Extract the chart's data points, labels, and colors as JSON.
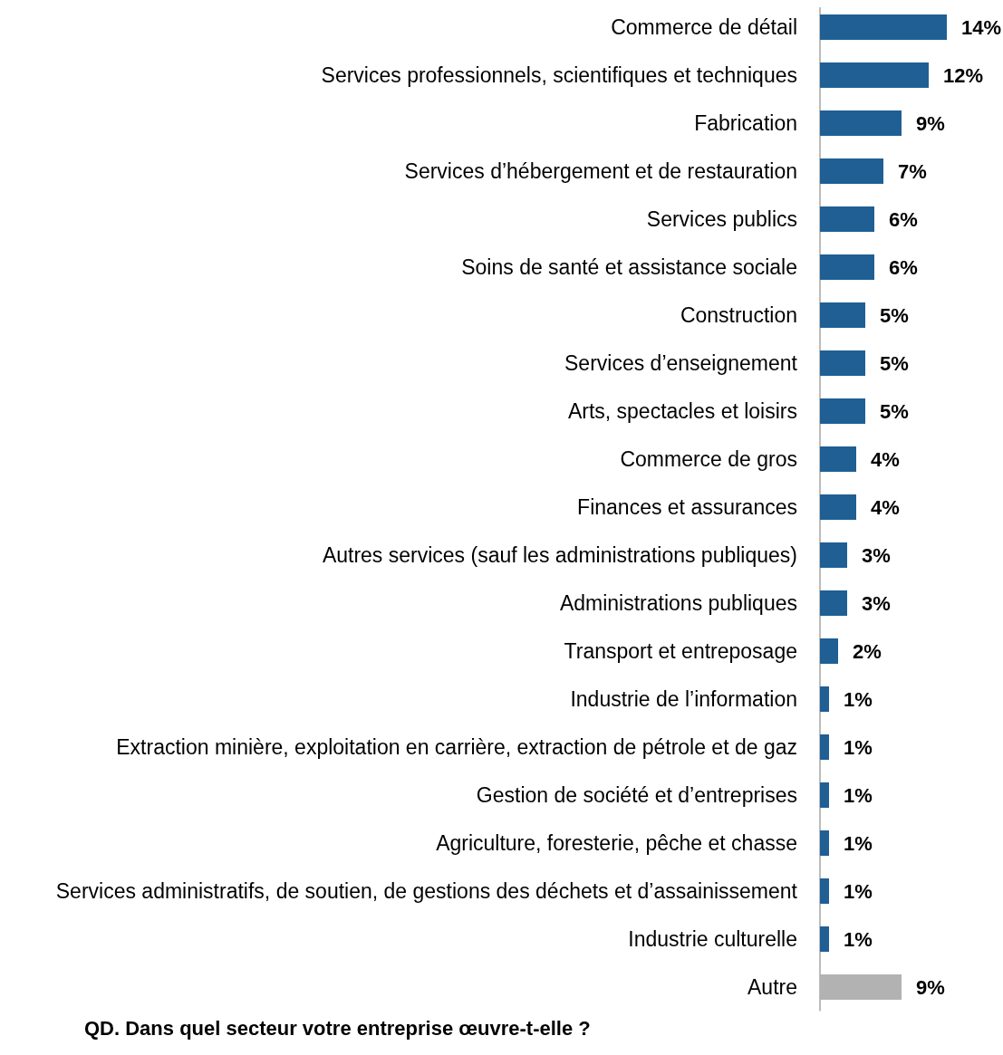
{
  "chart_data": {
    "type": "bar",
    "orientation": "horizontal",
    "title": "QD. Dans quel secteur votre entreprise œuvre-t-elle ?",
    "categories": [
      "Commerce de détail",
      "Services professionnels, scientifiques et techniques",
      "Fabrication",
      "Services d’hébergement et de restauration",
      "Services publics",
      "Soins de santé et assistance sociale",
      "Construction",
      "Services d’enseignement",
      "Arts, spectacles et loisirs",
      "Commerce de gros",
      "Finances et assurances",
      "Autres services (sauf les administrations publiques)",
      "Administrations publiques",
      "Transport et entreposage",
      "Industrie de l’information",
      "Extraction minière, exploitation en carrière, extraction de pétrole et de gaz",
      "Gestion de société et d’entreprises",
      "Agriculture, foresterie, pêche et chasse",
      "Services administratifs, de soutien, de gestions des déchets et d’assainissement",
      "Industrie culturelle",
      "Autre"
    ],
    "values": [
      14,
      12,
      9,
      7,
      6,
      6,
      5,
      5,
      5,
      4,
      4,
      3,
      3,
      2,
      1,
      1,
      1,
      1,
      1,
      1,
      9
    ],
    "colors": [
      "#1f5f94",
      "#1f5f94",
      "#1f5f94",
      "#1f5f94",
      "#1f5f94",
      "#1f5f94",
      "#1f5f94",
      "#1f5f94",
      "#1f5f94",
      "#1f5f94",
      "#1f5f94",
      "#1f5f94",
      "#1f5f94",
      "#1f5f94",
      "#1f5f94",
      "#1f5f94",
      "#1f5f94",
      "#1f5f94",
      "#1f5f94",
      "#1f5f94",
      "#b2b2b2"
    ],
    "value_labels": [
      "14%",
      "12%",
      "9%",
      "7%",
      "6%",
      "6%",
      "5%",
      "5%",
      "5%",
      "4%",
      "4%",
      "3%",
      "3%",
      "2%",
      "1%",
      "1%",
      "1%",
      "1%",
      "1%",
      "1%",
      "9%"
    ]
  }
}
